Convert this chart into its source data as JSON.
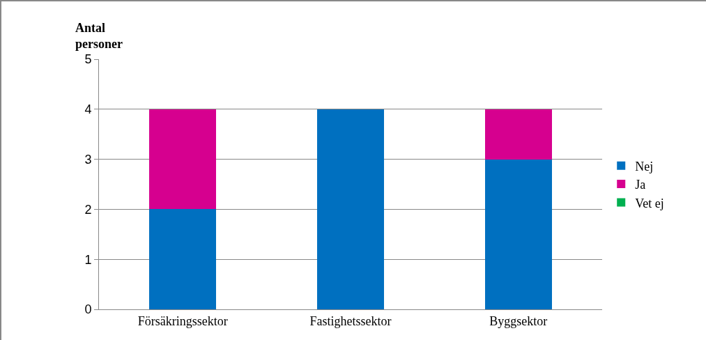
{
  "chart_data": {
    "type": "bar",
    "stacked": true,
    "ylabel": "Antal personer",
    "categories": [
      "Försäkringssektor",
      "Fastighetssektor",
      "Byggsektor"
    ],
    "series": [
      {
        "name": "Nej",
        "color": "#0070c0",
        "values": [
          2,
          4,
          3
        ]
      },
      {
        "name": "Ja",
        "color": "#d6008f",
        "values": [
          2,
          0,
          1
        ]
      },
      {
        "name": "Vet ej",
        "color": "#00b050",
        "values": [
          0,
          0,
          0
        ]
      }
    ],
    "ylim": [
      0,
      5
    ],
    "yticks": [
      0,
      1,
      2,
      3,
      4,
      5
    ],
    "grid": "y",
    "legend": "right"
  }
}
